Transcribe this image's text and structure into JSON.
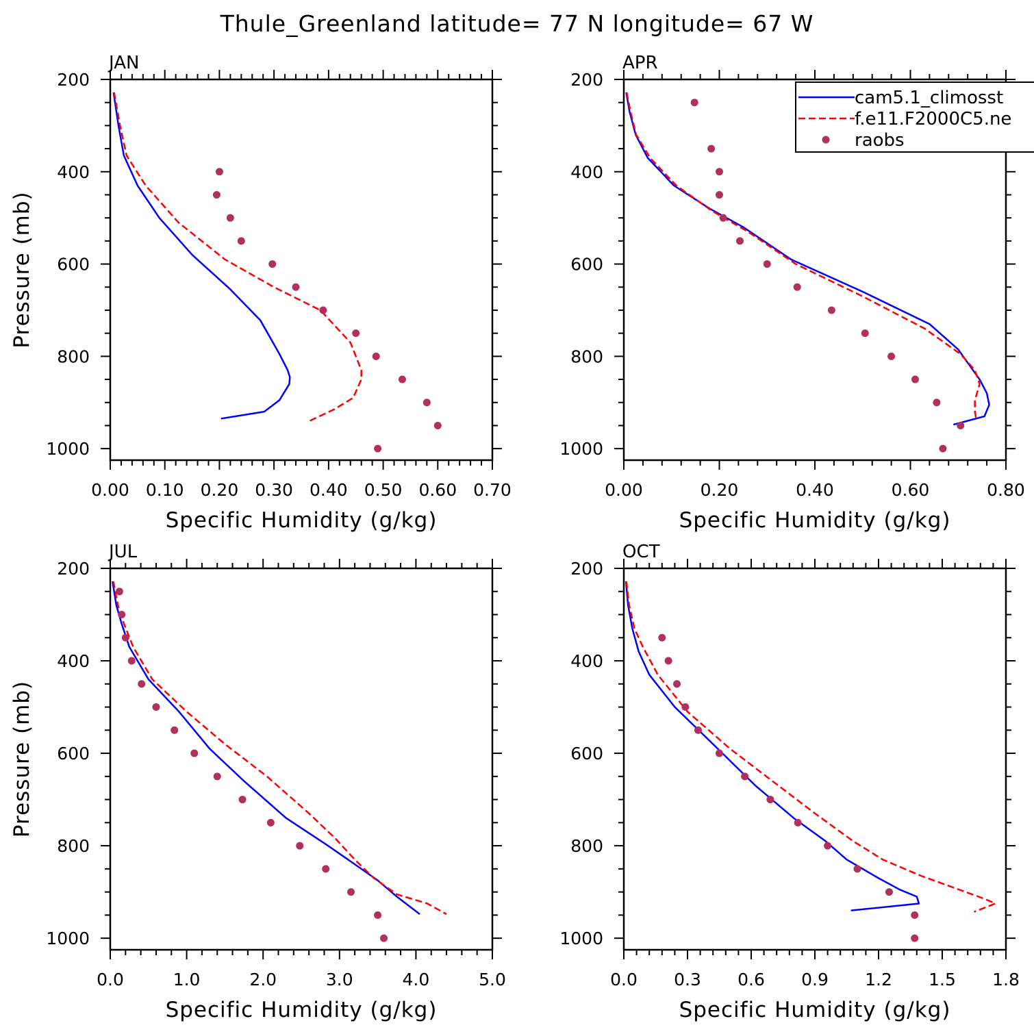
{
  "title": "Thule_Greenland  latitude= 77 N longitude= 67 W",
  "legend": {
    "entries": [
      {
        "label": "cam5.1_climosst",
        "style": "solid",
        "color": "#0000ff"
      },
      {
        "label": "f.e11.F2000C5.ne",
        "style": "dashed",
        "color": "#ff0000"
      },
      {
        "label": "raobs",
        "style": "dot",
        "color": "#b03060"
      }
    ]
  },
  "colors": {
    "model1": "#0000ff",
    "model2": "#ff0000",
    "obs": "#b03060"
  },
  "chart_data": [
    {
      "type": "line",
      "title": "JAN",
      "xlabel": "Specific Humidity (g/kg)",
      "ylabel": "Pressure (mb)",
      "xlim": [
        0,
        0.7
      ],
      "ylim": [
        1025,
        200
      ],
      "xticks": [
        0,
        0.1,
        0.2,
        0.3,
        0.4,
        0.5,
        0.6,
        0.7
      ],
      "xticklabels": [
        "0.00",
        "0.10",
        "0.20",
        "0.30",
        "0.40",
        "0.50",
        "0.60",
        "0.70"
      ],
      "yticks": [
        200,
        400,
        600,
        800,
        1000
      ],
      "yticklabels": [
        "200",
        "400",
        "600",
        "800",
        "1000"
      ],
      "show_legend": false,
      "series": [
        {
          "name": "cam5.1_climosst",
          "kind": "line",
          "points": [
            [
              0.006,
              228
            ],
            [
              0.015,
              300
            ],
            [
              0.025,
              365
            ],
            [
              0.05,
              430
            ],
            [
              0.09,
              500
            ],
            [
              0.15,
              580
            ],
            [
              0.22,
              655
            ],
            [
              0.275,
              722
            ],
            [
              0.31,
              795
            ],
            [
              0.325,
              830
            ],
            [
              0.329,
              845
            ],
            [
              0.328,
              860
            ],
            [
              0.31,
              895
            ],
            [
              0.282,
              920
            ],
            [
              0.203,
              935
            ]
          ]
        },
        {
          "name": "f.e11.F2000C5.ne",
          "kind": "dashed",
          "points": [
            [
              0.007,
              228
            ],
            [
              0.018,
              300
            ],
            [
              0.03,
              365
            ],
            [
              0.065,
              430
            ],
            [
              0.125,
              510
            ],
            [
              0.21,
              590
            ],
            [
              0.3,
              650
            ],
            [
              0.385,
              700
            ],
            [
              0.44,
              770
            ],
            [
              0.46,
              830
            ],
            [
              0.46,
              850
            ],
            [
              0.445,
              890
            ],
            [
              0.41,
              915
            ],
            [
              0.365,
              940
            ]
          ]
        },
        {
          "name": "raobs",
          "kind": "points",
          "points": [
            [
              0.2,
              400
            ],
            [
              0.195,
              450
            ],
            [
              0.22,
              500
            ],
            [
              0.24,
              550
            ],
            [
              0.297,
              600
            ],
            [
              0.34,
              650
            ],
            [
              0.39,
              700
            ],
            [
              0.45,
              750
            ],
            [
              0.487,
              800
            ],
            [
              0.535,
              850
            ],
            [
              0.58,
              900
            ],
            [
              0.6,
              950
            ],
            [
              0.49,
              1000
            ]
          ]
        }
      ]
    },
    {
      "type": "line",
      "title": "APR",
      "xlabel": "Specific Humidity (g/kg)",
      "ylabel": "",
      "xlim": [
        0,
        0.8
      ],
      "ylim": [
        1025,
        200
      ],
      "xticks": [
        0,
        0.2,
        0.4,
        0.6,
        0.8
      ],
      "xticklabels": [
        "0.00",
        "0.20",
        "0.40",
        "0.60",
        "0.80"
      ],
      "yticks": [
        200,
        400,
        600,
        800,
        1000
      ],
      "yticklabels": [
        "200",
        "400",
        "600",
        "800",
        "1000"
      ],
      "show_legend": true,
      "series": [
        {
          "name": "cam5.1_climosst",
          "kind": "line",
          "points": [
            [
              0.005,
              228
            ],
            [
              0.012,
              270
            ],
            [
              0.025,
              320
            ],
            [
              0.05,
              370
            ],
            [
              0.105,
              430
            ],
            [
              0.18,
              480
            ],
            [
              0.25,
              520
            ],
            [
              0.35,
              590
            ],
            [
              0.5,
              660
            ],
            [
              0.64,
              730
            ],
            [
              0.7,
              785
            ],
            [
              0.745,
              850
            ],
            [
              0.76,
              880
            ],
            [
              0.765,
              905
            ],
            [
              0.755,
              930
            ],
            [
              0.69,
              948
            ]
          ]
        },
        {
          "name": "f.e11.F2000C5.ne",
          "kind": "dashed",
          "points": [
            [
              0.006,
              228
            ],
            [
              0.014,
              270
            ],
            [
              0.026,
              320
            ],
            [
              0.055,
              370
            ],
            [
              0.11,
              430
            ],
            [
              0.185,
              485
            ],
            [
              0.26,
              530
            ],
            [
              0.36,
              600
            ],
            [
              0.5,
              670
            ],
            [
              0.63,
              740
            ],
            [
              0.705,
              795
            ],
            [
              0.735,
              830
            ],
            [
              0.745,
              860
            ],
            [
              0.735,
              895
            ],
            [
              0.735,
              920
            ],
            [
              0.738,
              938
            ]
          ]
        },
        {
          "name": "raobs",
          "kind": "points",
          "points": [
            [
              0.148,
              250
            ],
            [
              0.183,
              350
            ],
            [
              0.2,
              400
            ],
            [
              0.2,
              450
            ],
            [
              0.208,
              500
            ],
            [
              0.243,
              550
            ],
            [
              0.3,
              600
            ],
            [
              0.363,
              650
            ],
            [
              0.435,
              700
            ],
            [
              0.505,
              750
            ],
            [
              0.56,
              800
            ],
            [
              0.61,
              850
            ],
            [
              0.655,
              900
            ],
            [
              0.705,
              950
            ],
            [
              0.668,
              1000
            ]
          ]
        }
      ]
    },
    {
      "type": "line",
      "title": "JUL",
      "xlabel": "Specific Humidity (g/kg)",
      "ylabel": "Pressure (mb)",
      "xlim": [
        0,
        5.0
      ],
      "ylim": [
        1025,
        200
      ],
      "xticks": [
        0,
        1,
        2,
        3,
        4,
        5
      ],
      "xticklabels": [
        "0.0",
        "1.0",
        "2.0",
        "3.0",
        "4.0",
        "5.0"
      ],
      "yticks": [
        200,
        400,
        600,
        800,
        1000
      ],
      "yticklabels": [
        "200",
        "400",
        "600",
        "800",
        "1000"
      ],
      "show_legend": false,
      "series": [
        {
          "name": "cam5.1_climosst",
          "kind": "line",
          "points": [
            [
              0.03,
              228
            ],
            [
              0.08,
              280
            ],
            [
              0.15,
              320
            ],
            [
              0.25,
              370
            ],
            [
              0.5,
              440
            ],
            [
              0.9,
              510
            ],
            [
              1.3,
              590
            ],
            [
              1.75,
              660
            ],
            [
              2.3,
              740
            ],
            [
              2.85,
              800
            ],
            [
              3.2,
              840
            ],
            [
              3.5,
              875
            ],
            [
              3.75,
              910
            ],
            [
              4.05,
              948
            ]
          ]
        },
        {
          "name": "f.e11.F2000C5.ne",
          "kind": "dashed",
          "points": [
            [
              0.04,
              228
            ],
            [
              0.1,
              280
            ],
            [
              0.18,
              320
            ],
            [
              0.3,
              370
            ],
            [
              0.55,
              440
            ],
            [
              1.0,
              510
            ],
            [
              1.5,
              580
            ],
            [
              2.05,
              650
            ],
            [
              2.6,
              730
            ],
            [
              2.95,
              785
            ],
            [
              3.2,
              830
            ],
            [
              3.45,
              870
            ],
            [
              3.75,
              905
            ],
            [
              4.15,
              925
            ],
            [
              4.4,
              948
            ]
          ]
        },
        {
          "name": "raobs",
          "kind": "points",
          "points": [
            [
              0.12,
              250
            ],
            [
              0.15,
              300
            ],
            [
              0.2,
              350
            ],
            [
              0.28,
              400
            ],
            [
              0.41,
              450
            ],
            [
              0.6,
              500
            ],
            [
              0.84,
              550
            ],
            [
              1.1,
              600
            ],
            [
              1.4,
              650
            ],
            [
              1.73,
              700
            ],
            [
              2.1,
              750
            ],
            [
              2.48,
              800
            ],
            [
              2.82,
              850
            ],
            [
              3.15,
              900
            ],
            [
              3.5,
              950
            ],
            [
              3.58,
              1000
            ]
          ]
        }
      ]
    },
    {
      "type": "line",
      "title": "OCT",
      "xlabel": "Specific Humidity (g/kg)",
      "ylabel": "",
      "xlim": [
        0,
        1.8
      ],
      "ylim": [
        1025,
        200
      ],
      "xticks": [
        0,
        0.3,
        0.6,
        0.9,
        1.2,
        1.5,
        1.8
      ],
      "xticklabels": [
        "0.0",
        "0.3",
        "0.6",
        "0.9",
        "1.2",
        "1.5",
        "1.8"
      ],
      "yticks": [
        200,
        400,
        600,
        800,
        1000
      ],
      "yticklabels": [
        "200",
        "400",
        "600",
        "800",
        "1000"
      ],
      "show_legend": false,
      "series": [
        {
          "name": "cam5.1_climosst",
          "kind": "line",
          "points": [
            [
              0.01,
              228
            ],
            [
              0.02,
              280
            ],
            [
              0.04,
              330
            ],
            [
              0.07,
              380
            ],
            [
              0.12,
              430
            ],
            [
              0.24,
              500
            ],
            [
              0.42,
              580
            ],
            [
              0.62,
              670
            ],
            [
              0.8,
              740
            ],
            [
              0.95,
              790
            ],
            [
              1.05,
              830
            ],
            [
              1.2,
              870
            ],
            [
              1.3,
              895
            ],
            [
              1.38,
              910
            ],
            [
              1.39,
              925
            ],
            [
              1.07,
              940
            ]
          ]
        },
        {
          "name": "f.e11.F2000C5.ne",
          "kind": "dashed",
          "points": [
            [
              0.012,
              228
            ],
            [
              0.025,
              280
            ],
            [
              0.05,
              330
            ],
            [
              0.09,
              370
            ],
            [
              0.16,
              430
            ],
            [
              0.3,
              510
            ],
            [
              0.5,
              590
            ],
            [
              0.7,
              660
            ],
            [
              0.9,
              730
            ],
            [
              1.08,
              790
            ],
            [
              1.22,
              830
            ],
            [
              1.4,
              865
            ],
            [
              1.58,
              895
            ],
            [
              1.7,
              915
            ],
            [
              1.75,
              925
            ],
            [
              1.65,
              943
            ]
          ]
        },
        {
          "name": "raobs",
          "kind": "points",
          "points": [
            [
              0.18,
              350
            ],
            [
              0.21,
              400
            ],
            [
              0.25,
              450
            ],
            [
              0.29,
              500
            ],
            [
              0.35,
              550
            ],
            [
              0.45,
              600
            ],
            [
              0.57,
              650
            ],
            [
              0.69,
              700
            ],
            [
              0.82,
              750
            ],
            [
              0.96,
              800
            ],
            [
              1.1,
              850
            ],
            [
              1.25,
              900
            ],
            [
              1.37,
              950
            ],
            [
              1.37,
              1000
            ]
          ]
        }
      ]
    }
  ]
}
